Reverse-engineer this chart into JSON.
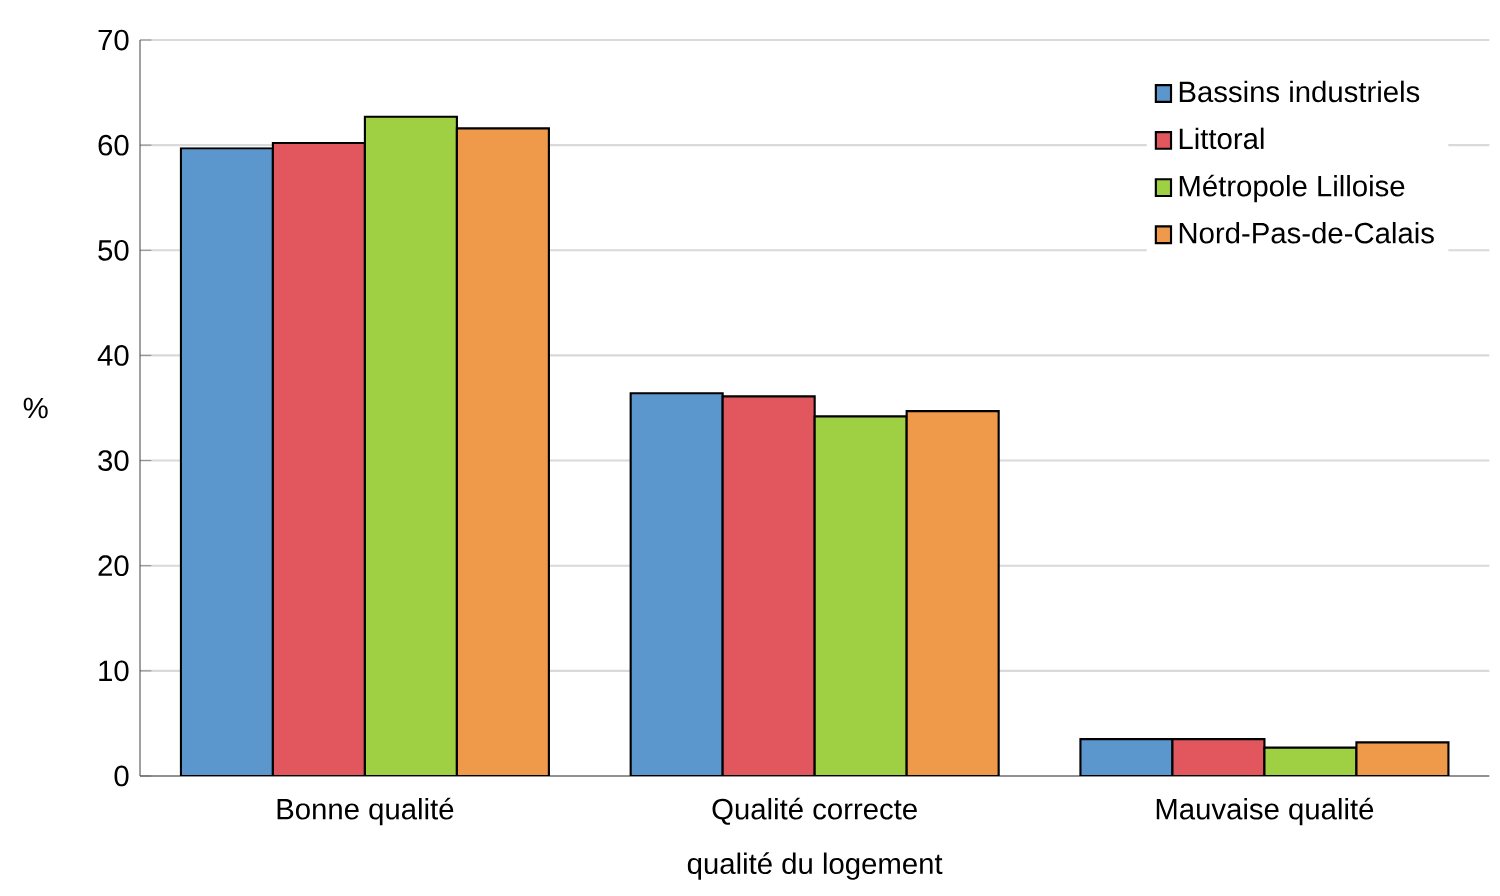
{
  "chart_data": {
    "type": "bar",
    "xlabel": "qualité du logement",
    "ylabel": "%",
    "categories": [
      "Bonne qualité",
      "Qualité correcte",
      "Mauvaise qualité"
    ],
    "series": [
      {
        "name": "Bassins industriels",
        "color": "#5b96cc",
        "values": [
          59.7,
          36.4,
          3.5
        ]
      },
      {
        "name": "Littoral",
        "color": "#e2575d",
        "values": [
          60.2,
          36.1,
          3.5
        ]
      },
      {
        "name": "Métropole Lilloise",
        "color": "#9fcf42",
        "values": [
          62.7,
          34.2,
          2.7
        ]
      },
      {
        "name": "Nord-Pas-de-Calais",
        "color": "#ef9a4a",
        "values": [
          61.6,
          34.7,
          3.2
        ]
      }
    ],
    "ylim": [
      0,
      70
    ],
    "yticks": [
      0,
      10,
      20,
      30,
      40,
      50,
      60,
      70
    ],
    "grid": "y",
    "legend": "top right"
  }
}
